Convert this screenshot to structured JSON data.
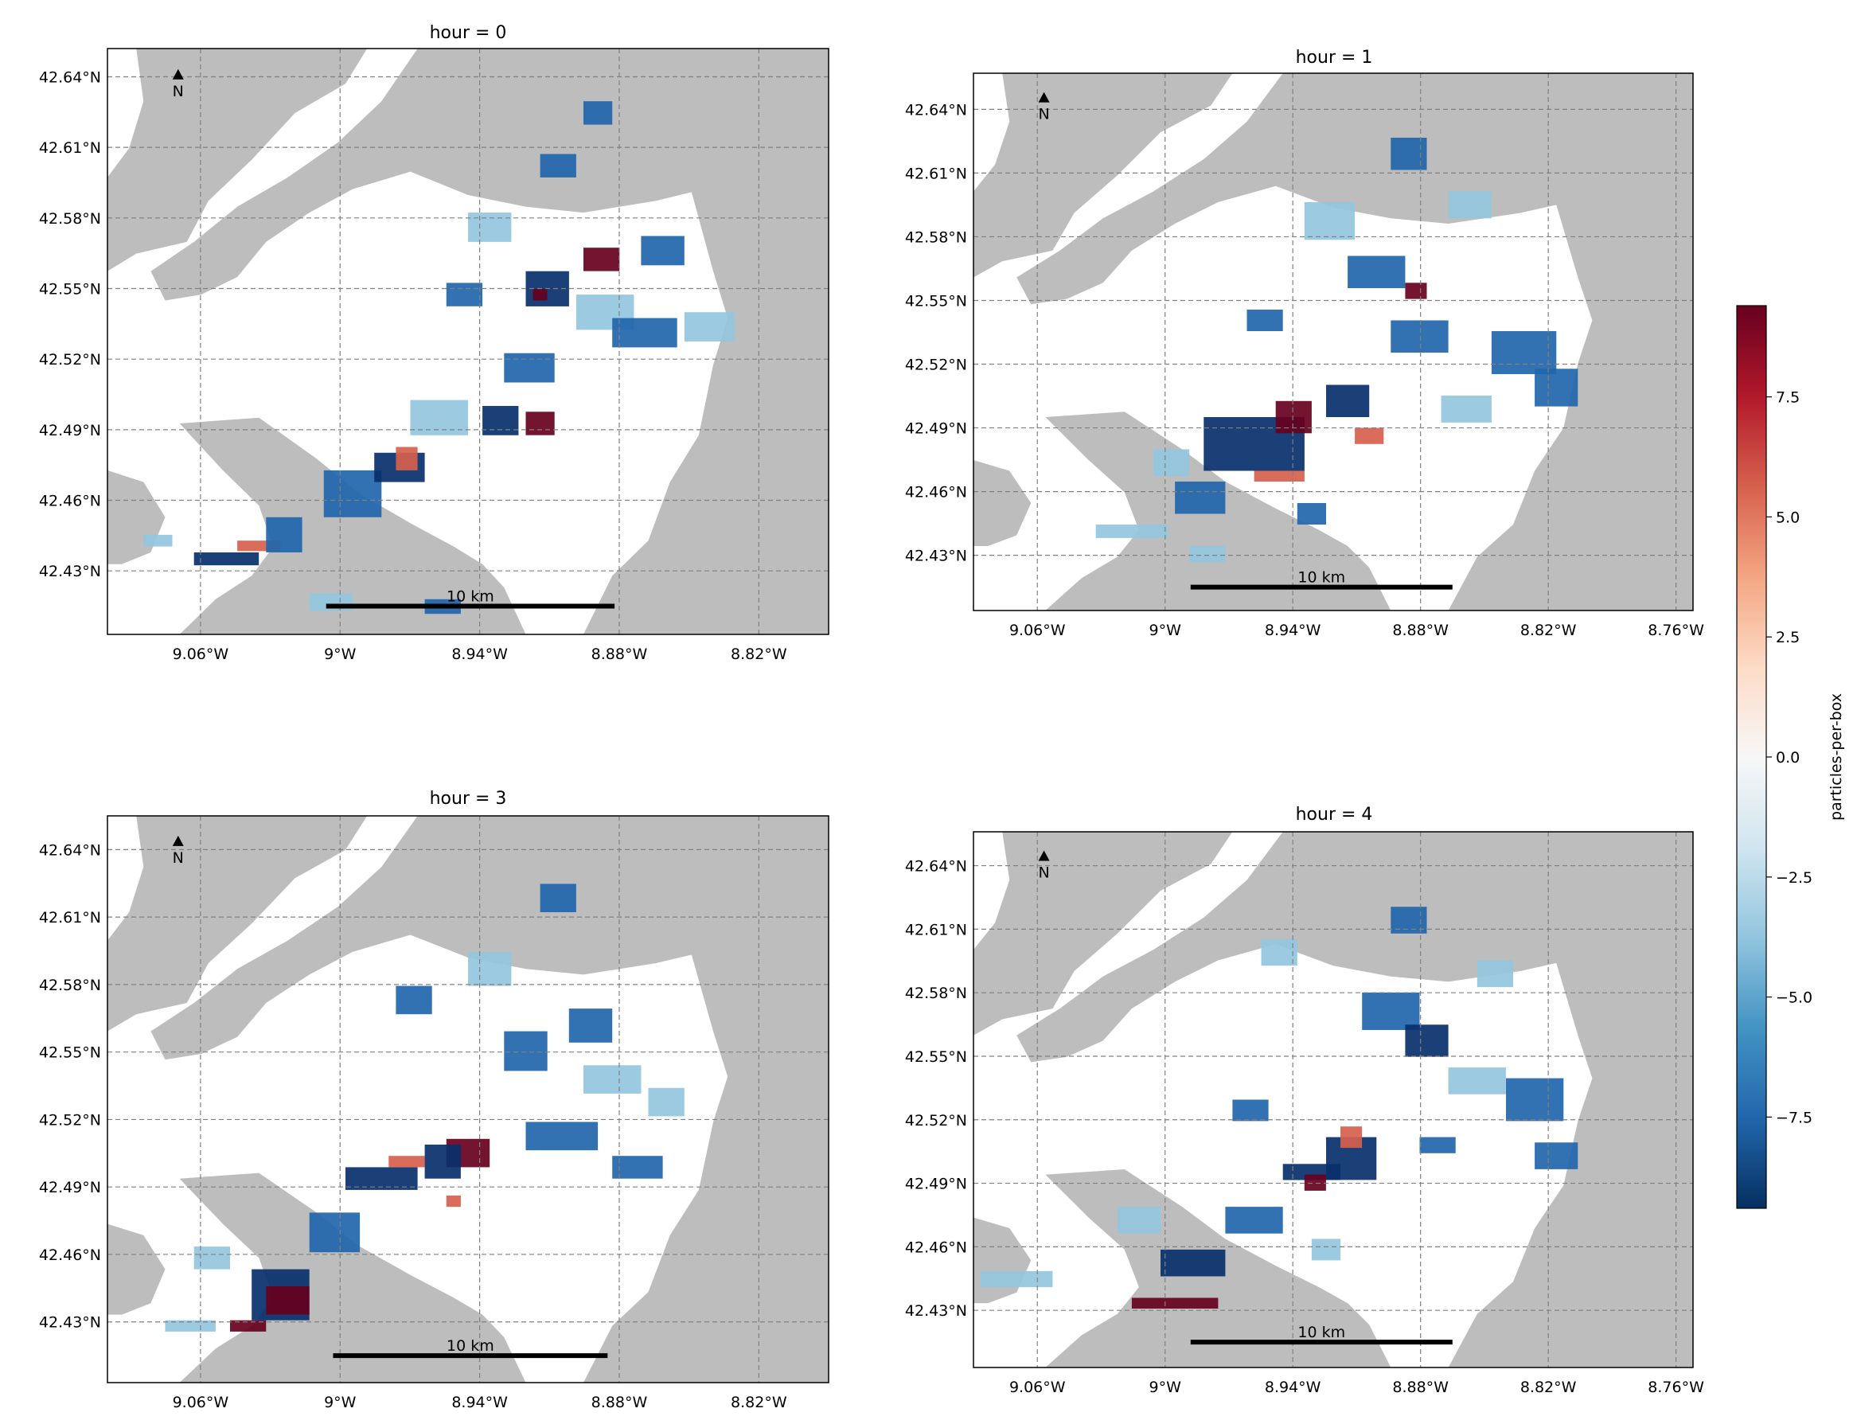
{
  "chart_data": {
    "type": "heatmap",
    "colormap": "RdBu_r",
    "colorbar": {
      "label": "particles-per-box",
      "range": [
        -9.4,
        9.4
      ],
      "ticks": [
        7.5,
        5.0,
        2.5,
        0.0,
        -2.5,
        -5.0,
        -7.5
      ],
      "tick_labels": [
        "7.5",
        "5.0",
        "2.5",
        "0.0",
        "−2.5",
        "−5.0",
        "−7.5"
      ]
    },
    "colors": {
      "land": "#bdbdbd",
      "water": "#ffffff",
      "grid": "#808080",
      "dark_blue": "#08306b",
      "mid_blue": "#2166ac",
      "light_blue": "#92c5de",
      "dark_red": "#67001f",
      "red": "#d6604d"
    },
    "north_arrow": "N",
    "scalebar_label": "10 km",
    "panels": [
      {
        "title": "hour = 0",
        "xlim": [
          -9.1,
          -8.79
        ],
        "ylim": [
          42.403,
          42.652
        ],
        "xticks": [
          -9.06,
          -9.0,
          -8.94,
          -8.88,
          -8.82
        ],
        "xtick_labels": [
          "9.06°W",
          "9°W",
          "8.94°W",
          "8.88°W",
          "8.82°W"
        ],
        "yticks": [
          42.43,
          42.46,
          42.49,
          42.52,
          42.55,
          42.58,
          42.61,
          42.64
        ],
        "ytick_labels": [
          "42.43°N",
          "42.46°N",
          "42.49°N",
          "42.52°N",
          "42.55°N",
          "42.58°N",
          "42.61°N",
          "42.64°N"
        ],
        "scalebar": [
          -9.006,
          -8.882,
          42.415
        ]
      },
      {
        "title": "hour = 1",
        "xlim": [
          -9.09,
          -8.752
        ],
        "ylim": [
          42.404,
          42.657
        ],
        "xticks": [
          -9.06,
          -9.0,
          -8.94,
          -8.88,
          -8.82,
          -8.76
        ],
        "xtick_labels": [
          "9.06°W",
          "9°W",
          "8.94°W",
          "8.88°W",
          "8.82°W",
          "8.76°W"
        ],
        "yticks": [
          42.43,
          42.46,
          42.49,
          42.52,
          42.55,
          42.58,
          42.61,
          42.64
        ],
        "ytick_labels": [
          "42.43°N",
          "42.46°N",
          "42.49°N",
          "42.52°N",
          "42.55°N",
          "42.58°N",
          "42.61°N",
          "42.64°N"
        ],
        "scalebar": [
          -8.988,
          -8.865,
          42.415
        ]
      },
      {
        "title": "hour = 3",
        "xlim": [
          -9.1,
          -8.79
        ],
        "ylim": [
          42.403,
          42.655
        ],
        "xticks": [
          -9.06,
          -9.0,
          -8.94,
          -8.88,
          -8.82
        ],
        "xtick_labels": [
          "9.06°W",
          "9°W",
          "8.94°W",
          "8.88°W",
          "8.82°W"
        ],
        "yticks": [
          42.43,
          42.46,
          42.49,
          42.52,
          42.55,
          42.58,
          42.61,
          42.64
        ],
        "ytick_labels": [
          "42.43°N",
          "42.46°N",
          "42.49°N",
          "42.52°N",
          "42.55°N",
          "42.58°N",
          "42.61°N",
          "42.64°N"
        ],
        "scalebar": [
          -9.003,
          -8.885,
          42.415
        ]
      },
      {
        "title": "hour = 4",
        "xlim": [
          -9.09,
          -8.752
        ],
        "ylim": [
          42.403,
          42.656
        ],
        "xticks": [
          -9.06,
          -9.0,
          -8.94,
          -8.88,
          -8.82,
          -8.76
        ],
        "xtick_labels": [
          "9.06°W",
          "9°W",
          "8.94°W",
          "8.88°W",
          "8.82°W",
          "8.76°W"
        ],
        "yticks": [
          42.43,
          42.46,
          42.49,
          42.52,
          42.55,
          42.58,
          42.61,
          42.64
        ],
        "ytick_labels": [
          "42.43°N",
          "42.46°N",
          "42.49°N",
          "42.52°N",
          "42.55°N",
          "42.58°N",
          "42.61°N",
          "42.64°N"
        ],
        "scalebar": [
          -8.988,
          -8.865,
          42.415
        ]
      }
    ]
  }
}
